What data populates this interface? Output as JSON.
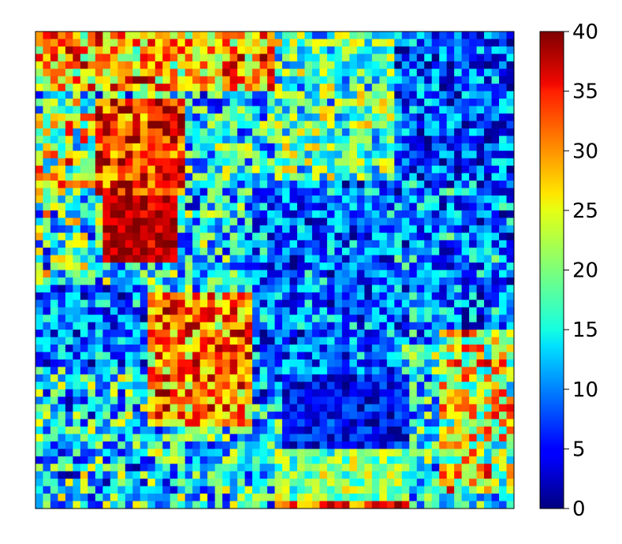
{
  "chart_data": {
    "type": "heatmap",
    "colormap": "jet",
    "title": "",
    "xlabel": "",
    "ylabel": "",
    "axes_ticks_visible": false,
    "grid": false,
    "rows": 64,
    "cols": 64,
    "value_range": [
      0,
      40
    ],
    "colorbar": {
      "placement": "right",
      "ticks": [
        0,
        5,
        10,
        15,
        20,
        25,
        30,
        35,
        40
      ],
      "tick_labels": [
        "0",
        "5",
        "10",
        "15",
        "20",
        "25",
        "30",
        "35",
        "40"
      ]
    },
    "regions": [
      {
        "desc": "top-left warm band",
        "row_range": [
          0,
          8
        ],
        "col_range": [
          0,
          32
        ],
        "mean": 28,
        "spread": 10
      },
      {
        "desc": "upper-left hot block",
        "row_range": [
          9,
          22
        ],
        "col_range": [
          8,
          20
        ],
        "mean": 34,
        "spread": 8
      },
      {
        "desc": "upper-left mixed",
        "row_range": [
          9,
          22
        ],
        "col_range": [
          0,
          8
        ],
        "mean": 22,
        "spread": 12
      },
      {
        "desc": "mid-left hottest block",
        "row_range": [
          22,
          31
        ],
        "col_range": [
          9,
          19
        ],
        "mean": 38,
        "spread": 4
      },
      {
        "desc": "mid-left mixed",
        "row_range": [
          22,
          34
        ],
        "col_range": [
          0,
          9
        ],
        "mean": 17,
        "spread": 12
      },
      {
        "desc": "left cold band",
        "row_range": [
          34,
          45
        ],
        "col_range": [
          0,
          15
        ],
        "mean": 9,
        "spread": 8
      },
      {
        "desc": "centre-left hot blob",
        "row_range": [
          35,
          53
        ],
        "col_range": [
          15,
          29
        ],
        "mean": 30,
        "spread": 9
      },
      {
        "desc": "bottom-left mixed",
        "row_range": [
          45,
          64
        ],
        "col_range": [
          0,
          15
        ],
        "mean": 14,
        "spread": 11
      },
      {
        "desc": "top-centre teal",
        "row_range": [
          0,
          20
        ],
        "col_range": [
          32,
          48
        ],
        "mean": 18,
        "spread": 9
      },
      {
        "desc": "top-right cold",
        "row_range": [
          0,
          20
        ],
        "col_range": [
          48,
          64
        ],
        "mean": 8,
        "spread": 8
      },
      {
        "desc": "centre cold field",
        "row_range": [
          20,
          50
        ],
        "col_range": [
          29,
          48
        ],
        "mean": 9,
        "spread": 8
      },
      {
        "desc": "right cold field",
        "row_range": [
          20,
          40
        ],
        "col_range": [
          48,
          64
        ],
        "mean": 10,
        "spread": 9
      },
      {
        "desc": "lower-right warm patch",
        "row_range": [
          40,
          62
        ],
        "col_range": [
          54,
          64
        ],
        "mean": 24,
        "spread": 11
      },
      {
        "desc": "lower-centre cold",
        "row_range": [
          46,
          58
        ],
        "col_range": [
          33,
          50
        ],
        "mean": 5,
        "spread": 5
      },
      {
        "desc": "bottom-centre green strip",
        "row_range": [
          56,
          63
        ],
        "col_range": [
          32,
          50
        ],
        "mean": 20,
        "spread": 6
      },
      {
        "desc": "bottom edge hot strip",
        "row_range": [
          63,
          64
        ],
        "col_range": [
          32,
          50
        ],
        "mean": 33,
        "spread": 7
      }
    ],
    "baseline": {
      "mean": 14,
      "spread": 10
    }
  }
}
